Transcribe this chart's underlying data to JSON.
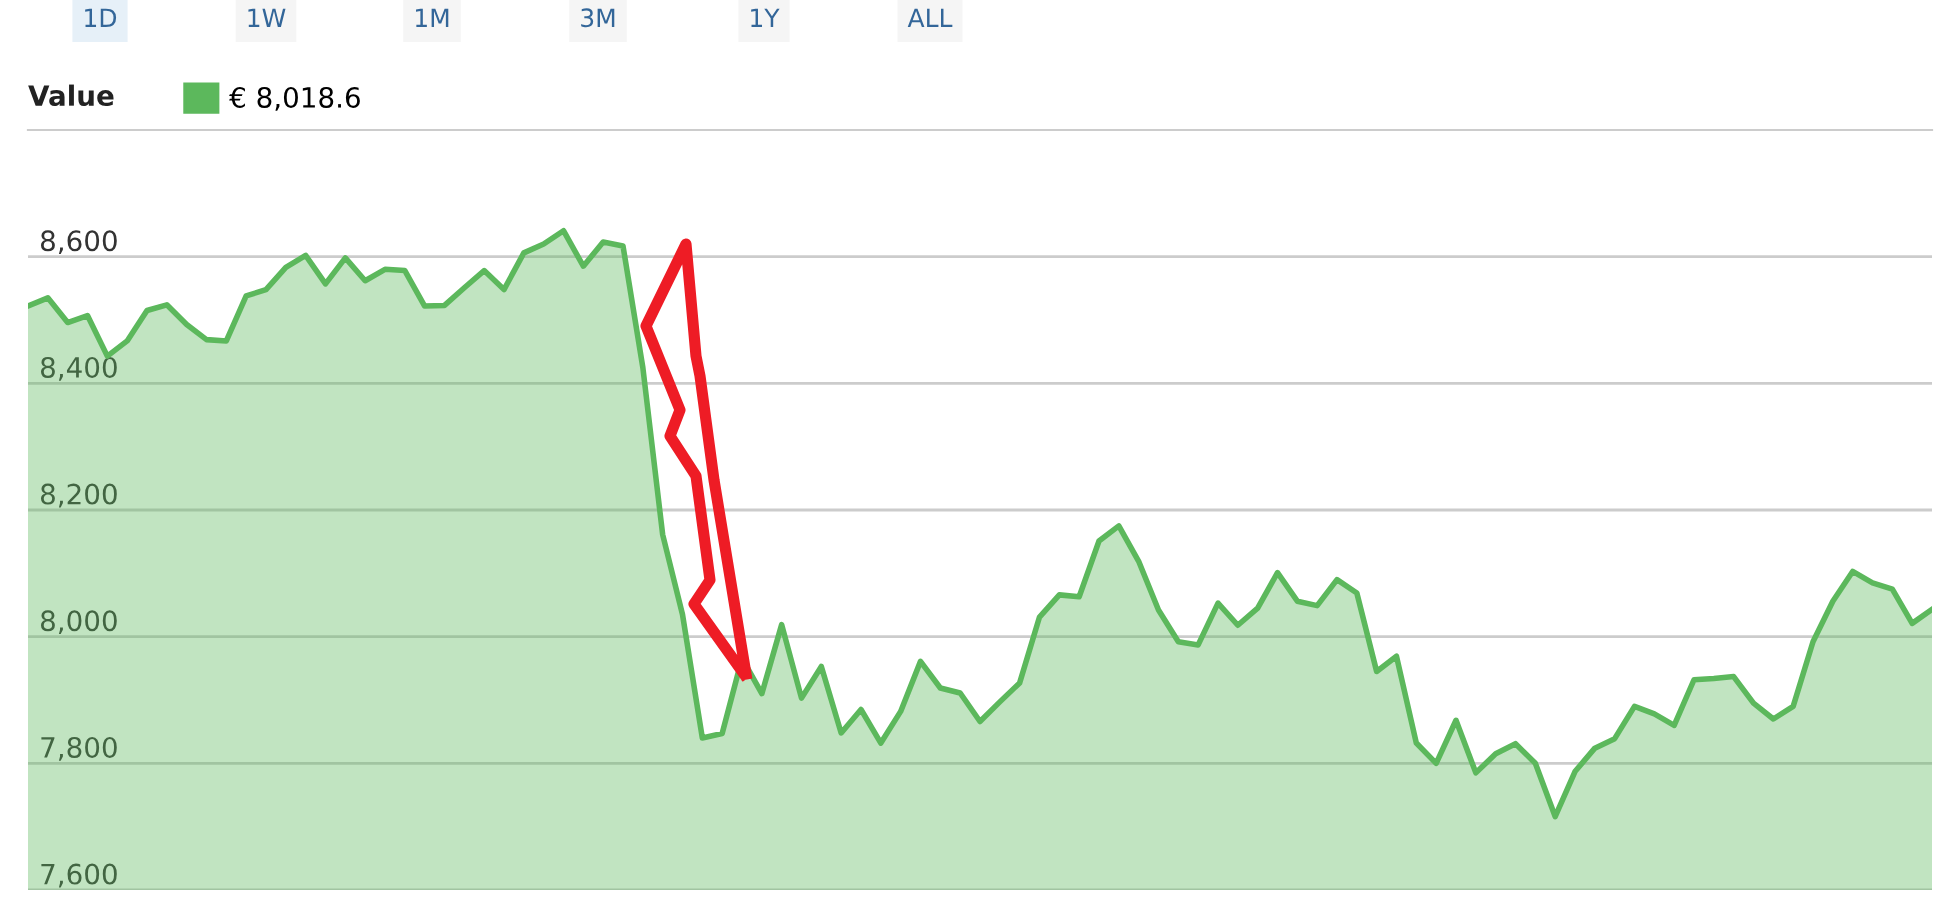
{
  "chart_data": {
    "type": "area",
    "legend_title": "Value",
    "annotations": [
      "1D",
      "1W",
      "1M",
      "3M",
      "1Y",
      "ALL"
    ],
    "categories": [
      null,
      null,
      null,
      null,
      null,
      null,
      null,
      null,
      null,
      null,
      null,
      null,
      null,
      null,
      null,
      null,
      null,
      null,
      null,
      null,
      null,
      null,
      null,
      null,
      null,
      null,
      null,
      null,
      null,
      null,
      null,
      null,
      null,
      null,
      null,
      null,
      null,
      null,
      null,
      null,
      null,
      null,
      null,
      null,
      null,
      null,
      null,
      null,
      null,
      null,
      null,
      null,
      null,
      null,
      null,
      null,
      null,
      null,
      null,
      null,
      null,
      null,
      null,
      null,
      null,
      null,
      null,
      null,
      null,
      null,
      null,
      null,
      null,
      null,
      null,
      null,
      null,
      null,
      null,
      null,
      null,
      null,
      null,
      null,
      null,
      null,
      null,
      null,
      null,
      null,
      null,
      null,
      null,
      null,
      null,
      null,
      null
    ],
    "series": [
      {
        "name": "€ 8,018.6",
        "color": "#5cb85c",
        "values": [
          8522,
          8535,
          8496,
          8507,
          8443,
          8467,
          8515,
          8524,
          8493,
          8469,
          8467,
          8538,
          8548,
          8583,
          8602,
          8557,
          8598,
          8562,
          8580,
          8578,
          8522,
          8523,
          8551,
          8578,
          8548,
          8606,
          8620,
          8641,
          8585,
          8623,
          8617,
          8425,
          8161,
          8035,
          7840,
          7847,
          7966,
          7910,
          8019,
          7903,
          7953,
          7848,
          7885,
          7832,
          7882,
          7961,
          7919,
          7911,
          7866,
          7897,
          7927,
          8031,
          8066,
          8063,
          8151,
          8175,
          8119,
          8042,
          7992,
          7987,
          8053,
          8018,
          8045,
          8101,
          8056,
          8049,
          8090,
          8069,
          7945,
          7969,
          7832,
          7800,
          7868,
          7785,
          7815,
          7831,
          7800,
          7716,
          7787,
          7824,
          7839,
          7890,
          7878,
          7860,
          7932,
          7934,
          7937,
          7895,
          7870,
          7890,
          7992,
          8056,
          8103,
          8085,
          8075,
          8021,
          8043
        ]
      }
    ],
    "ylim": [
      7600,
      8800
    ],
    "yticks": [
      {
        "value": 7600,
        "label": "7,600"
      },
      {
        "value": 7800,
        "label": "7,800"
      },
      {
        "value": 8000,
        "label": "8,000"
      },
      {
        "value": 8200,
        "label": "8,200"
      },
      {
        "value": 8400,
        "label": "8,400"
      },
      {
        "value": 8600,
        "label": "8,600"
      }
    ],
    "grid": "y",
    "legend": "top left",
    "tick_labels": "y"
  }
}
